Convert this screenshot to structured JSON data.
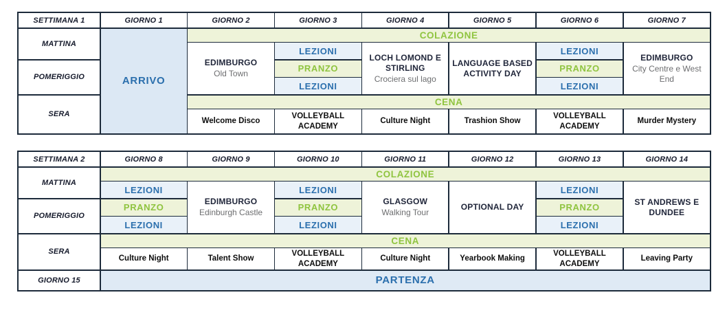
{
  "colors": {
    "accent_green": "#8fc43f",
    "accent_blue": "#2b6fad",
    "light_green_bg": "#eef3d9",
    "light_blue_bg": "#e9f1f9",
    "arrival_bg": "#dce8f4",
    "border": "#1c2a3a"
  },
  "week1": {
    "headers": [
      "SETTIMANA 1",
      "GIORNO 1",
      "GIORNO 2",
      "GIORNO 3",
      "GIORNO 4",
      "GIORNO 5",
      "GIORNO 6",
      "GIORNO 7"
    ],
    "time_rows": {
      "morning": "MATTINA",
      "afternoon": "POMERIGGIO",
      "evening": "SERA"
    },
    "meals": {
      "breakfast": "COLAZIONE",
      "lunch": "PRANZO",
      "dinner": "CENA"
    },
    "lessons_label": "LEZIONI",
    "arrival_label": "ARRIVO",
    "day_activities": {
      "day2": {
        "title": "EDIMBURGO",
        "subtitle": "Old Town"
      },
      "day4": {
        "title": "LOCH LOMOND E STIRLING",
        "subtitle": "Crociera sul lago"
      },
      "day5": {
        "title": "LANGUAGE BASED ACTIVITY DAY"
      },
      "day7": {
        "title": "EDIMBURGO",
        "subtitle": "City Centre e West End"
      }
    },
    "evening_events": [
      "Welcome Disco",
      "VOLLEYBALL ACADEMY",
      "Culture Night",
      "Trashion Show",
      "VOLLEYBALL ACADEMY",
      "Murder Mystery"
    ]
  },
  "week2": {
    "headers": [
      "SETTIMANA 2",
      "GIORNO 8",
      "GIORNO 9",
      "GIORNO 10",
      "GIORNO 11",
      "GIORNO 12",
      "GIORNO 13",
      "GIORNO 14"
    ],
    "time_rows": {
      "morning": "MATTINA",
      "afternoon": "POMERIGGIO",
      "evening": "SERA"
    },
    "meals": {
      "breakfast": "COLAZIONE",
      "lunch": "PRANZO",
      "dinner": "CENA"
    },
    "lessons_label": "LEZIONI",
    "day_activities": {
      "day9": {
        "title": "EDIMBURGO",
        "subtitle": "Edinburgh Castle"
      },
      "day11": {
        "title": "GLASGOW",
        "subtitle": "Walking Tour"
      },
      "day12": {
        "title": "OPTIONAL DAY"
      },
      "day14": {
        "title": "ST ANDREWS E DUNDEE"
      }
    },
    "evening_events": [
      "Culture Night",
      "Talent Show",
      "VOLLEYBALL ACADEMY",
      "Culture Night",
      "Yearbook Making",
      "VOLLEYBALL ACADEMY",
      "Leaving Party"
    ],
    "departure_row": {
      "label": "GIORNO 15",
      "value": "PARTENZA"
    }
  }
}
